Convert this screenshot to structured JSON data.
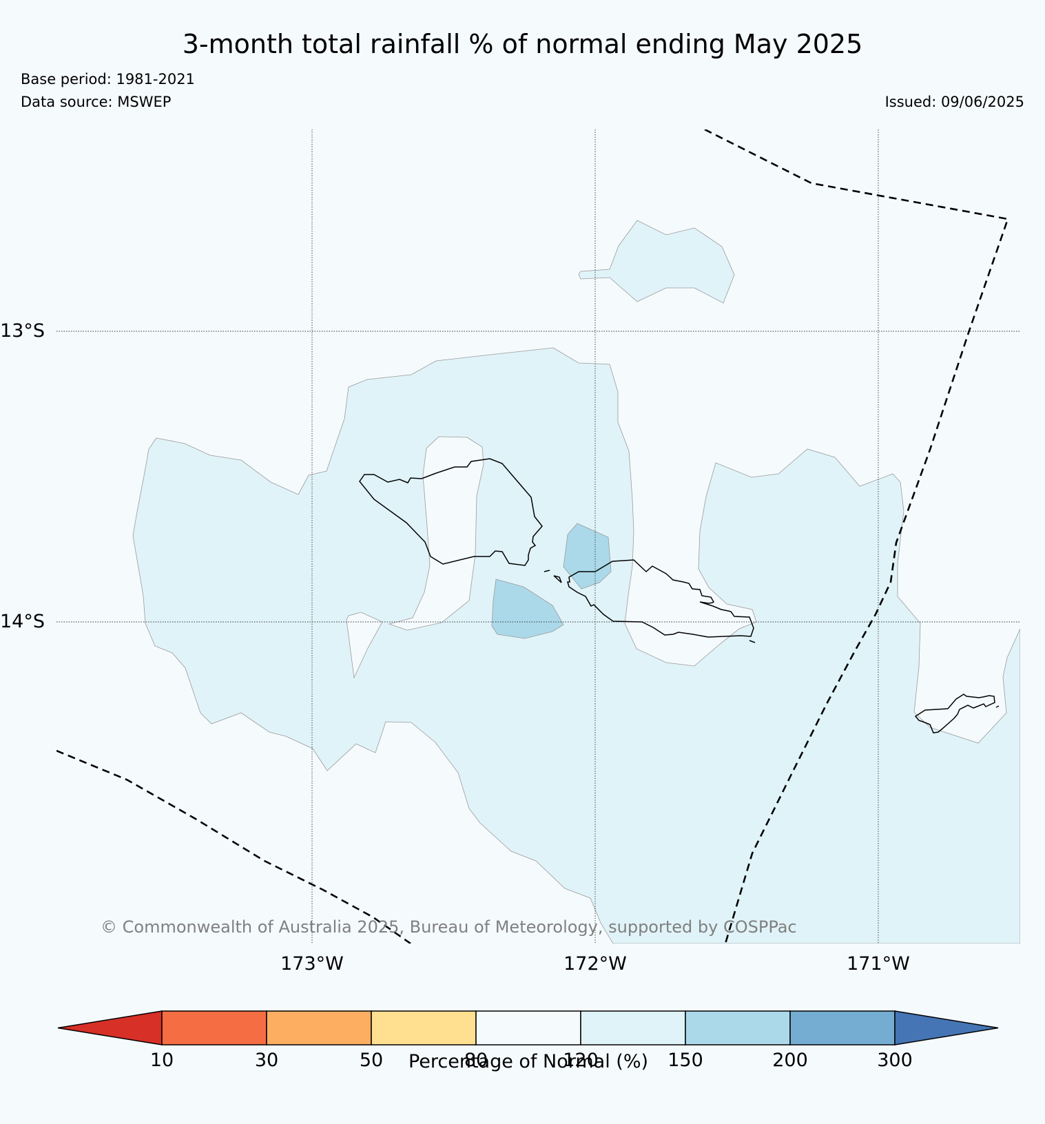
{
  "header": {
    "title": "3-month total rainfall % of normal ending May 2025",
    "base_period": "Base period: 1981-2021",
    "data_source": "Data source: MSWEP",
    "issued": "Issued: 09/06/2025"
  },
  "map": {
    "lat_labels": [
      "13°S",
      "14°S"
    ],
    "lon_labels": [
      "173°W",
      "172°W",
      "171°W"
    ],
    "copyright": "© Commonwealth of Australia 2025, Bureau of Meteorology, supported by COSPPac",
    "ocean_color": "#f5fafd",
    "class_120_150_color": "#e0f3f8",
    "class_150_200_color": "#abd9e9"
  },
  "legend": {
    "title": "Percentage of Normal (%)",
    "ticks": [
      "10",
      "30",
      "50",
      "80",
      "120",
      "150",
      "200",
      "300"
    ],
    "colors": [
      "#d73027",
      "#f46d43",
      "#fdae61",
      "#fee090",
      "#f5fafd",
      "#e0f3f8",
      "#abd9e9",
      "#74add1",
      "#4575b4"
    ]
  }
}
